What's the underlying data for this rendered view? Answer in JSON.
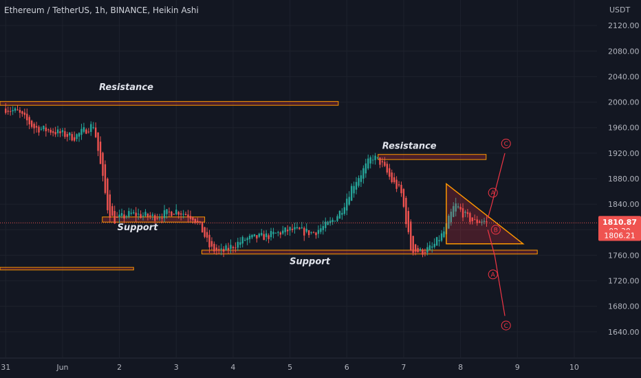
{
  "header": {
    "title": "Ethereum / TetherUS, 1h, BINANCE, Heikin Ashi"
  },
  "colors": {
    "bg": "#131722",
    "up": "#26a69a",
    "down": "#ef5350",
    "zone": "#ff9800",
    "wave": "#f23645",
    "price": "#ef5350"
  },
  "chart_data": {
    "type": "candlestick",
    "title": "Ethereum / TetherUS, 1h, BINANCE, Heikin Ashi",
    "currency": "USDT",
    "ylim": [
      1600,
      2160
    ],
    "y_ticks": [
      1640,
      1680,
      1720,
      1760,
      1800,
      1840,
      1880,
      1920,
      1960,
      2000,
      2040,
      2080,
      2120
    ],
    "y_tick_labels": [
      "1640.00",
      "1680.00",
      "1720.00",
      "1760.00",
      "1800.00",
      "1840.00",
      "1880.00",
      "1920.00",
      "1960.00",
      "2000.00",
      "2040.00",
      "2080.00",
      "2120.00"
    ],
    "xlim": [
      -0.1,
      10.4
    ],
    "x_ticks": [
      {
        "x": 0,
        "label": "31"
      },
      {
        "x": 1,
        "label": "Jun"
      },
      {
        "x": 2,
        "label": "2"
      },
      {
        "x": 3,
        "label": "3"
      },
      {
        "x": 4,
        "label": "4"
      },
      {
        "x": 5,
        "label": "5"
      },
      {
        "x": 6,
        "label": "6"
      },
      {
        "x": 7,
        "label": "7"
      },
      {
        "x": 8,
        "label": "8"
      },
      {
        "x": 9,
        "label": "9"
      },
      {
        "x": 10,
        "label": "10"
      }
    ],
    "price_path": [
      [
        0,
        1990
      ],
      [
        0.2,
        1985
      ],
      [
        0.5,
        1960
      ],
      [
        0.8,
        1955
      ],
      [
        1.2,
        1945
      ],
      [
        1.55,
        1965
      ],
      [
        1.65,
        1910
      ],
      [
        1.8,
        1830
      ],
      [
        1.9,
        1815
      ],
      [
        2.2,
        1825
      ],
      [
        2.6,
        1820
      ],
      [
        3.0,
        1830
      ],
      [
        3.3,
        1820
      ],
      [
        3.45,
        1800
      ],
      [
        3.6,
        1770
      ],
      [
        3.8,
        1765
      ],
      [
        4.2,
        1785
      ],
      [
        4.6,
        1790
      ],
      [
        5.0,
        1800
      ],
      [
        5.4,
        1795
      ],
      [
        5.7,
        1810
      ],
      [
        5.9,
        1830
      ],
      [
        6.1,
        1870
      ],
      [
        6.3,
        1895
      ],
      [
        6.45,
        1915
      ],
      [
        6.6,
        1905
      ],
      [
        6.8,
        1875
      ],
      [
        6.95,
        1860
      ],
      [
        7.05,
        1810
      ],
      [
        7.12,
        1770
      ],
      [
        7.3,
        1765
      ],
      [
        7.5,
        1772
      ],
      [
        7.7,
        1795
      ],
      [
        7.9,
        1840
      ],
      [
        8.1,
        1820
      ],
      [
        8.25,
        1812
      ],
      [
        8.4,
        1815
      ],
      [
        8.48,
        1810
      ]
    ],
    "zones": [
      {
        "label": "Resistance",
        "x0": -0.1,
        "x1": 5.85,
        "y0": 1995,
        "y1": 2001
      },
      {
        "label": "Resistance",
        "x0": 6.55,
        "x1": 8.45,
        "y0": 1910,
        "y1": 1918
      },
      {
        "label": "Support",
        "x0": 1.7,
        "x1": 3.5,
        "y0": 1812,
        "y1": 1820
      },
      {
        "label": "Support",
        "x0": 3.45,
        "x1": 9.35,
        "y0": 1762,
        "y1": 1768
      },
      {
        "label": "",
        "x0": -0.1,
        "x1": 2.25,
        "y0": 1737,
        "y1": 1741
      }
    ],
    "zone_labels": [
      {
        "text": "Resistance",
        "x": 2.12,
        "y": 2019
      },
      {
        "text": "Resistance",
        "x": 7.1,
        "y": 1927
      },
      {
        "text": "Support",
        "x": 2.32,
        "y": 1799
      },
      {
        "text": "Support",
        "x": 5.35,
        "y": 1746
      }
    ],
    "triangle": [
      [
        7.75,
        1872
      ],
      [
        9.1,
        1778
      ],
      [
        7.75,
        1778
      ]
    ],
    "bull_path": [
      [
        8.48,
        1818
      ],
      [
        8.55,
        1840
      ],
      [
        8.78,
        1920
      ]
    ],
    "bear_path": [
      [
        8.48,
        1800
      ],
      [
        8.6,
        1760
      ],
      [
        8.78,
        1665
      ]
    ],
    "wave_labels": [
      {
        "text": "C",
        "x": 8.8,
        "y": 1935
      },
      {
        "text": "A",
        "x": 8.57,
        "y": 1858
      },
      {
        "text": "B",
        "x": 8.62,
        "y": 1800
      },
      {
        "text": "A",
        "x": 8.57,
        "y": 1730
      },
      {
        "text": "C",
        "x": 8.8,
        "y": 1650
      }
    ],
    "last_price": {
      "value": 1810.87,
      "label": "1810.87",
      "countdown": "02:30"
    },
    "previous_close": {
      "value": 1806.21,
      "label": "1806.21"
    }
  }
}
